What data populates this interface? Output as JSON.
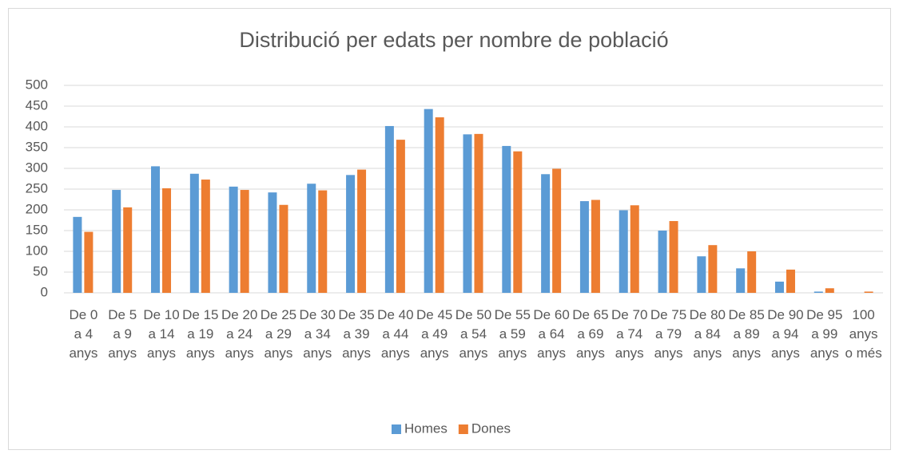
{
  "chart_data": {
    "type": "bar",
    "title": "Distribució per edats per nombre de població",
    "categories": [
      "De 0 a 4 anys",
      "De 5 a 9 anys",
      "De 10 a 14 anys",
      "De 15 a 19 anys",
      "De 20 a 24 anys",
      "De 25 a 29 anys",
      "De 30 a 34 anys",
      "De 35 a 39 anys",
      "De 40 a 44 anys",
      "De 45 a 49 anys",
      "De 50 a 54 anys",
      "De 55 a 59 anys",
      "De 60 a 64 anys",
      "De 65 a 69 anys",
      "De 70 a 74 anys",
      "De 75 a 79 anys",
      "De 80 a 84 anys",
      "De 85 a 89 anys",
      "De 90 a 94 anys",
      "De 95 a 99 anys",
      "100 anys o més"
    ],
    "series": [
      {
        "name": "Homes",
        "color": "#5b9bd5",
        "values": [
          183,
          248,
          305,
          287,
          256,
          242,
          263,
          284,
          402,
          443,
          382,
          354,
          286,
          221,
          199,
          150,
          88,
          59,
          27,
          3,
          0
        ]
      },
      {
        "name": "Dones",
        "color": "#ed7d31",
        "values": [
          147,
          206,
          252,
          273,
          248,
          212,
          247,
          297,
          369,
          423,
          383,
          341,
          299,
          224,
          211,
          173,
          115,
          100,
          56,
          11,
          3
        ]
      }
    ],
    "ylim": [
      0,
      500
    ],
    "yticks": [
      0,
      50,
      100,
      150,
      200,
      250,
      300,
      350,
      400,
      450,
      500
    ],
    "grid": true,
    "legend": "bottom"
  }
}
